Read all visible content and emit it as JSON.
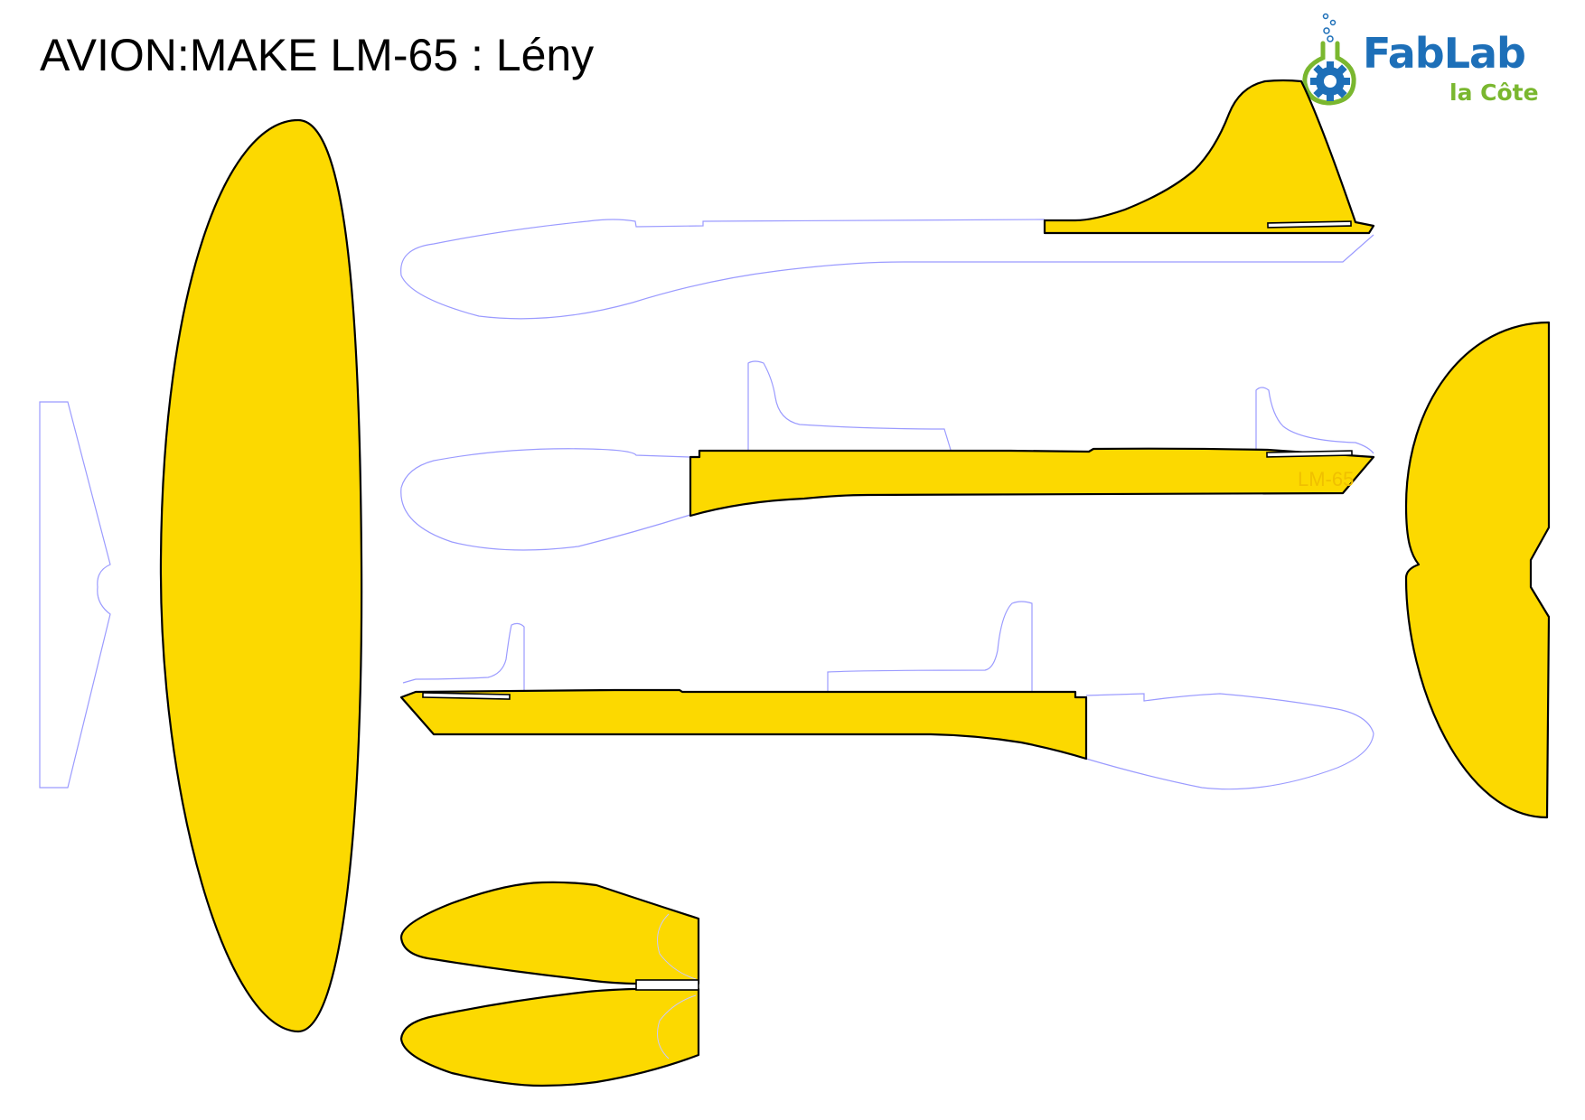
{
  "title": "AVION:MAKE LM-65 : Lény",
  "logo": {
    "line1": "FabLab",
    "line2": "la Côte",
    "primary_color": "#1d6fb8",
    "secondary_color": "#7ab72f"
  },
  "engraving": "LM-65",
  "colors": {
    "part_fill": "#fcd900",
    "cut_line": "#9b9bff",
    "outline": "#000000"
  }
}
